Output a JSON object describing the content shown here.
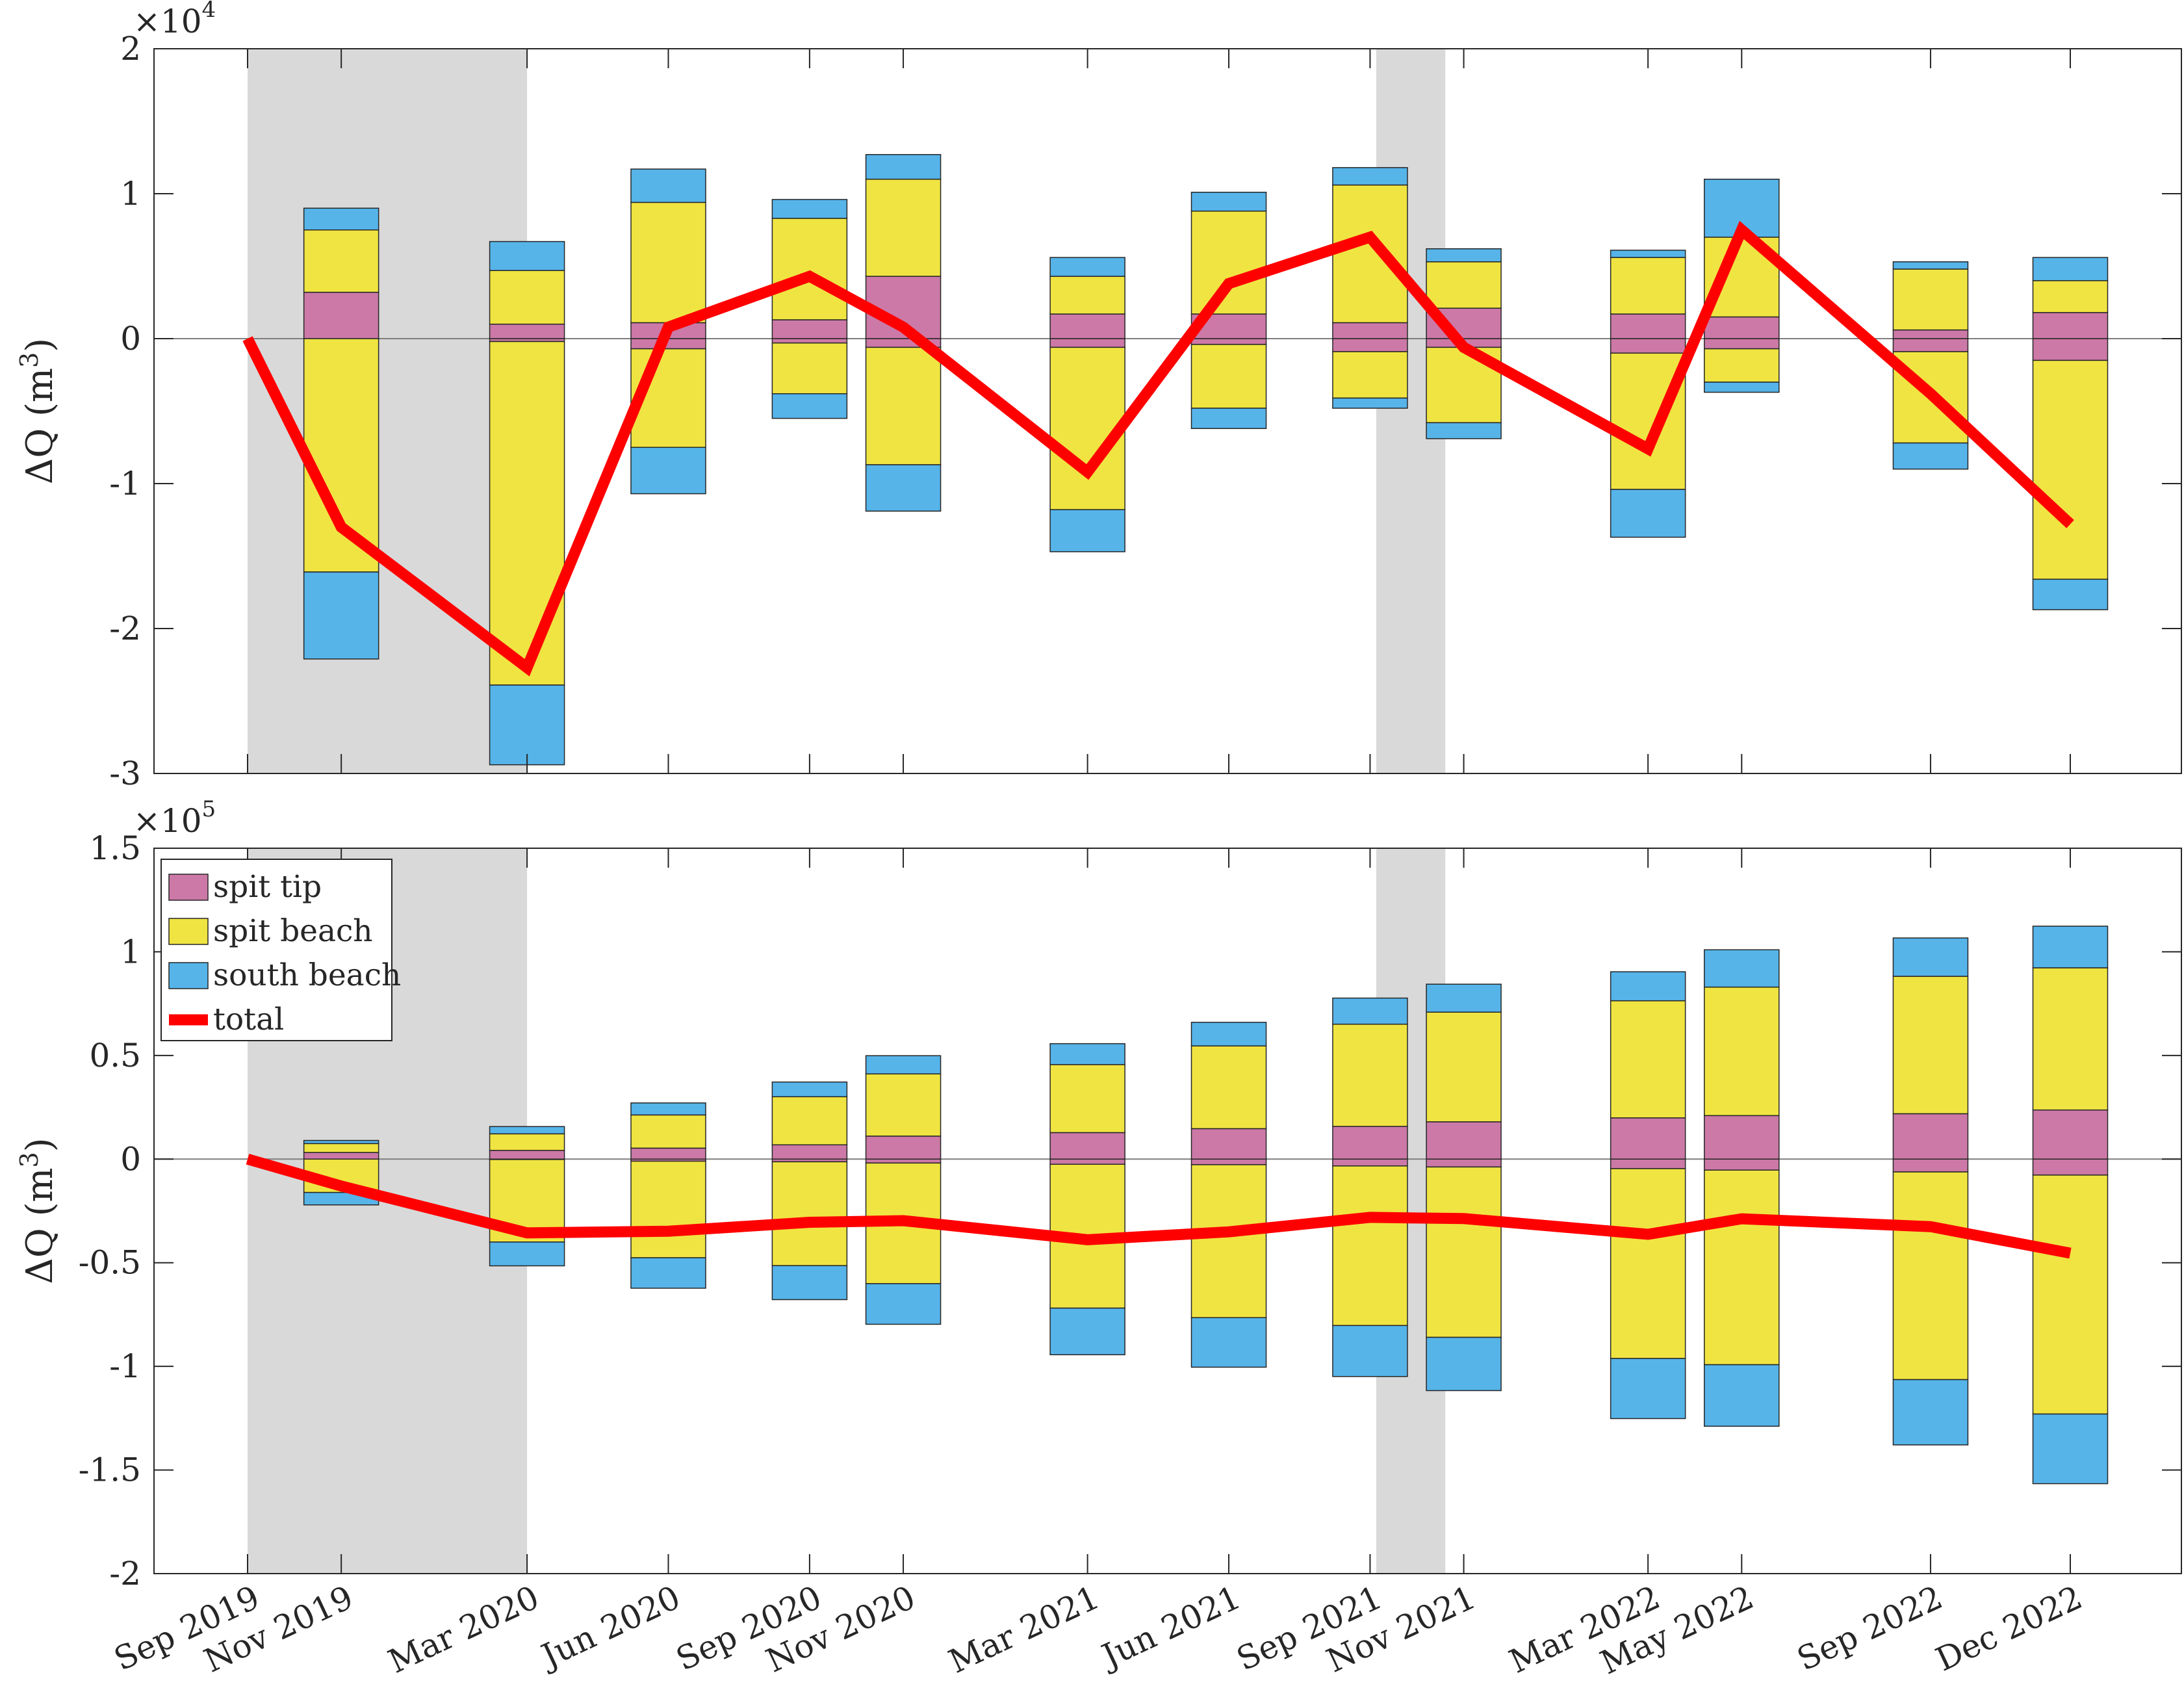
{
  "colors": {
    "spit_tip": "#CC79A7",
    "spit_beach": "#F0E442",
    "south_beach": "#56B4E9",
    "total": "#FF0000",
    "shade": "#D9D9D9"
  },
  "chart_data": [
    {
      "type": "bar",
      "stacked": true,
      "ylabel": "ΔQ (m³)",
      "ylabel_base": "ΔQ (m",
      "ylabel_sup": "3",
      "exp_base": "×10",
      "exp_power": "4",
      "ylim": [
        -30000,
        20000
      ],
      "yticks": [
        -30000,
        -20000,
        -10000,
        0,
        10000,
        20000
      ],
      "ytick_labels": [
        "-3",
        "-2",
        "-1",
        "0",
        "1",
        "2"
      ],
      "grid": false,
      "x_dates": [
        "2019-09-01",
        "2019-11-01",
        "2020-03-01",
        "2020-06-01",
        "2020-09-01",
        "2020-11-01",
        "2021-03-01",
        "2021-06-01",
        "2021-09-01",
        "2021-11-01",
        "2022-03-01",
        "2022-05-01",
        "2022-09-01",
        "2022-12-01"
      ],
      "shaded_periods": [
        [
          "2019-09-01",
          "2020-03-01"
        ],
        [
          "2021-09-05",
          "2021-10-20"
        ]
      ],
      "bar_dates": [
        "2019-11-01",
        "2020-03-01",
        "2020-06-01",
        "2020-09-01",
        "2020-11-01",
        "2021-03-01",
        "2021-06-01",
        "2021-09-01",
        "2021-11-01",
        "2022-03-01",
        "2022-05-01",
        "2022-09-01",
        "2022-12-01"
      ],
      "series": [
        {
          "name": "spit tip",
          "pos": [
            3200,
            1000,
            1100,
            1300,
            4300,
            1700,
            1700,
            1100,
            2100,
            1700,
            1500,
            600,
            1800
          ],
          "neg": [
            0,
            -200,
            -700,
            -300,
            -600,
            -600,
            -400,
            -900,
            -600,
            -1000,
            -700,
            -900,
            -1500
          ]
        },
        {
          "name": "spit beach",
          "pos": [
            4300,
            3700,
            8300,
            7000,
            6700,
            2600,
            7100,
            9500,
            3200,
            3900,
            5500,
            4200,
            2200
          ],
          "neg": [
            -16100,
            -23700,
            -6800,
            -3500,
            -8100,
            -11200,
            -4400,
            -3200,
            -5200,
            -9400,
            -2300,
            -6300,
            -15100
          ]
        },
        {
          "name": "south beach",
          "pos": [
            1500,
            2000,
            2300,
            1300,
            1700,
            1300,
            1300,
            1200,
            900,
            500,
            4000,
            500,
            1600
          ],
          "neg": [
            -6000,
            -5500,
            -3200,
            -1700,
            -3200,
            -2900,
            -1400,
            -700,
            -1100,
            -3300,
            -700,
            -1800,
            -2100
          ]
        }
      ],
      "total": {
        "name": "total",
        "dates": [
          "2019-09-01",
          "2019-11-01",
          "2020-03-01",
          "2020-06-01",
          "2020-09-01",
          "2020-11-01",
          "2021-03-01",
          "2021-06-01",
          "2021-09-01",
          "2021-11-01",
          "2022-03-01",
          "2022-05-01",
          "2022-09-01",
          "2022-12-01"
        ],
        "values": [
          0,
          -13000,
          -22700,
          800,
          4300,
          800,
          -9200,
          3800,
          7000,
          -600,
          -7600,
          7500,
          -3800,
          -12800
        ]
      }
    },
    {
      "type": "bar",
      "stacked": true,
      "ylabel": "ΔQ (m³)",
      "ylabel_base": "ΔQ (m",
      "ylabel_sup": "3",
      "exp_base": "×10",
      "exp_power": "5",
      "ylim": [
        -200000,
        150000
      ],
      "yticks": [
        -200000,
        -150000,
        -100000,
        -50000,
        0,
        50000,
        100000,
        150000
      ],
      "ytick_labels": [
        "-2",
        "-1.5",
        "-1",
        "-0.5",
        "0",
        "0.5",
        "1",
        "1.5"
      ],
      "xtick_labels": [
        "Sep 2019",
        "Nov 2019",
        "Mar 2020",
        "Jun 2020",
        "Sep 2020",
        "Nov 2020",
        "Mar 2021",
        "Jun 2021",
        "Sep 2021",
        "Nov 2021",
        "Mar 2022",
        "May 2022",
        "Sep 2022",
        "Dec 2022"
      ],
      "grid": false,
      "legend_location": "top-left",
      "legend": [
        "spit tip",
        "spit beach",
        "south beach",
        "total"
      ],
      "shaded_periods": [
        [
          "2019-09-01",
          "2020-03-01"
        ],
        [
          "2021-09-05",
          "2021-10-20"
        ]
      ],
      "bar_dates": [
        "2019-11-01",
        "2020-03-01",
        "2020-06-01",
        "2020-09-01",
        "2020-11-01",
        "2021-03-01",
        "2021-06-01",
        "2021-09-01",
        "2021-11-01",
        "2022-03-01",
        "2022-05-01",
        "2022-09-01",
        "2022-12-01"
      ],
      "series": [
        {
          "name": "spit tip",
          "pos": [
            3200,
            4200,
            5300,
            6900,
            11100,
            12800,
            14700,
            15800,
            18000,
            19900,
            21000,
            21900,
            23700
          ],
          "neg": [
            0,
            -200,
            -1000,
            -1300,
            -1900,
            -2500,
            -2700,
            -3300,
            -3800,
            -4600,
            -5300,
            -6200,
            -7700
          ]
        },
        {
          "name": "spit beach",
          "pos": [
            4300,
            8000,
            16000,
            23200,
            30000,
            32800,
            39900,
            49300,
            52900,
            56500,
            62000,
            66300,
            68600
          ],
          "neg": [
            -16100,
            -39800,
            -46600,
            -50100,
            -58200,
            -69400,
            -73800,
            -77000,
            -82200,
            -91600,
            -93900,
            -100200,
            -115300
          ]
        },
        {
          "name": "south beach",
          "pos": [
            1500,
            3500,
            5800,
            7100,
            8800,
            10100,
            11400,
            12600,
            13500,
            14000,
            18000,
            18500,
            20100
          ],
          "neg": [
            -6000,
            -11500,
            -14700,
            -16400,
            -19600,
            -22500,
            -23900,
            -24600,
            -25700,
            -29000,
            -29700,
            -31500,
            -33600
          ]
        }
      ],
      "total": {
        "name": "total",
        "dates": [
          "2019-09-01",
          "2019-11-01",
          "2020-03-01",
          "2020-06-01",
          "2020-09-01",
          "2020-11-01",
          "2021-03-01",
          "2021-06-01",
          "2021-09-01",
          "2021-11-01",
          "2022-03-01",
          "2022-05-01",
          "2022-09-01",
          "2022-12-01"
        ],
        "values": [
          0,
          -13000,
          -35600,
          -34800,
          -30500,
          -29700,
          -38900,
          -35100,
          -28100,
          -28700,
          -36300,
          -28800,
          -32600,
          -45400
        ]
      }
    }
  ]
}
